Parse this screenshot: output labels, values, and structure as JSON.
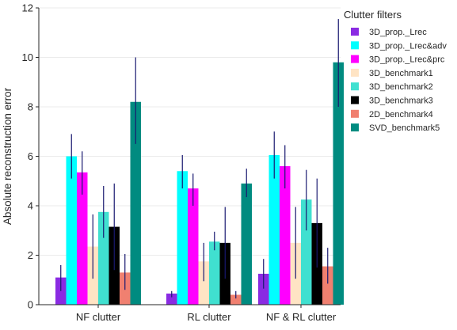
{
  "chart_data": {
    "type": "bar",
    "title": "",
    "xlabel": "",
    "ylabel": "Absolute reconstruction error",
    "ylim": [
      0,
      12
    ],
    "yticks": [
      "0",
      "2",
      "4",
      "6",
      "8",
      "10",
      "12"
    ],
    "grid": true,
    "legend_title": "Clutter filters",
    "legend_position": "top-right",
    "categories": [
      "NF clutter",
      "RL clutter",
      "NF & RL clutter"
    ],
    "series": [
      {
        "name": "3D_prop._Lrec",
        "color": "#8a2be2",
        "values": [
          1.1,
          0.45,
          1.25
        ],
        "err_low": [
          0.55,
          0.3,
          0.65
        ],
        "err_high": [
          1.6,
          0.55,
          1.85
        ]
      },
      {
        "name": "3D_prop._Lrec&adv",
        "color": "#00ffff",
        "values": [
          6.0,
          5.4,
          6.05
        ],
        "err_low": [
          5.1,
          4.7,
          5.1
        ],
        "err_high": [
          6.9,
          6.05,
          7.0
        ]
      },
      {
        "name": "3D_prop._Lrec&prc",
        "color": "#ff00ff",
        "values": [
          5.35,
          4.7,
          5.6
        ],
        "err_low": [
          4.45,
          4.0,
          4.7
        ],
        "err_high": [
          6.2,
          5.3,
          6.45
        ]
      },
      {
        "name": "3D_benchmark1",
        "color": "#ffe4c4",
        "values": [
          2.35,
          1.75,
          2.5
        ],
        "err_low": [
          1.05,
          0.95,
          1.05
        ],
        "err_high": [
          3.65,
          2.5,
          3.95
        ]
      },
      {
        "name": "3D_benchmark2",
        "color": "#40e0d0",
        "values": [
          3.75,
          2.55,
          4.25
        ],
        "err_low": [
          2.7,
          2.2,
          3.0
        ],
        "err_high": [
          4.8,
          2.95,
          5.45
        ]
      },
      {
        "name": "3D_benchmark3",
        "color": "#000000",
        "values": [
          3.15,
          2.5,
          3.3
        ],
        "err_low": [
          1.4,
          1.05,
          1.5
        ],
        "err_high": [
          4.9,
          3.95,
          5.1
        ]
      },
      {
        "name": "2D_benchmark4",
        "color": "#f08070",
        "values": [
          1.3,
          0.4,
          1.55
        ],
        "err_low": [
          0.6,
          0.25,
          0.85
        ],
        "err_high": [
          2.05,
          0.55,
          2.3
        ]
      },
      {
        "name": "SVD_benchmark5",
        "color": "#008b80",
        "values": [
          8.2,
          4.9,
          9.8
        ],
        "err_low": [
          6.5,
          4.35,
          8.0
        ],
        "err_high": [
          10.0,
          5.5,
          11.55
        ]
      }
    ],
    "error_bar_color": "#191970"
  }
}
